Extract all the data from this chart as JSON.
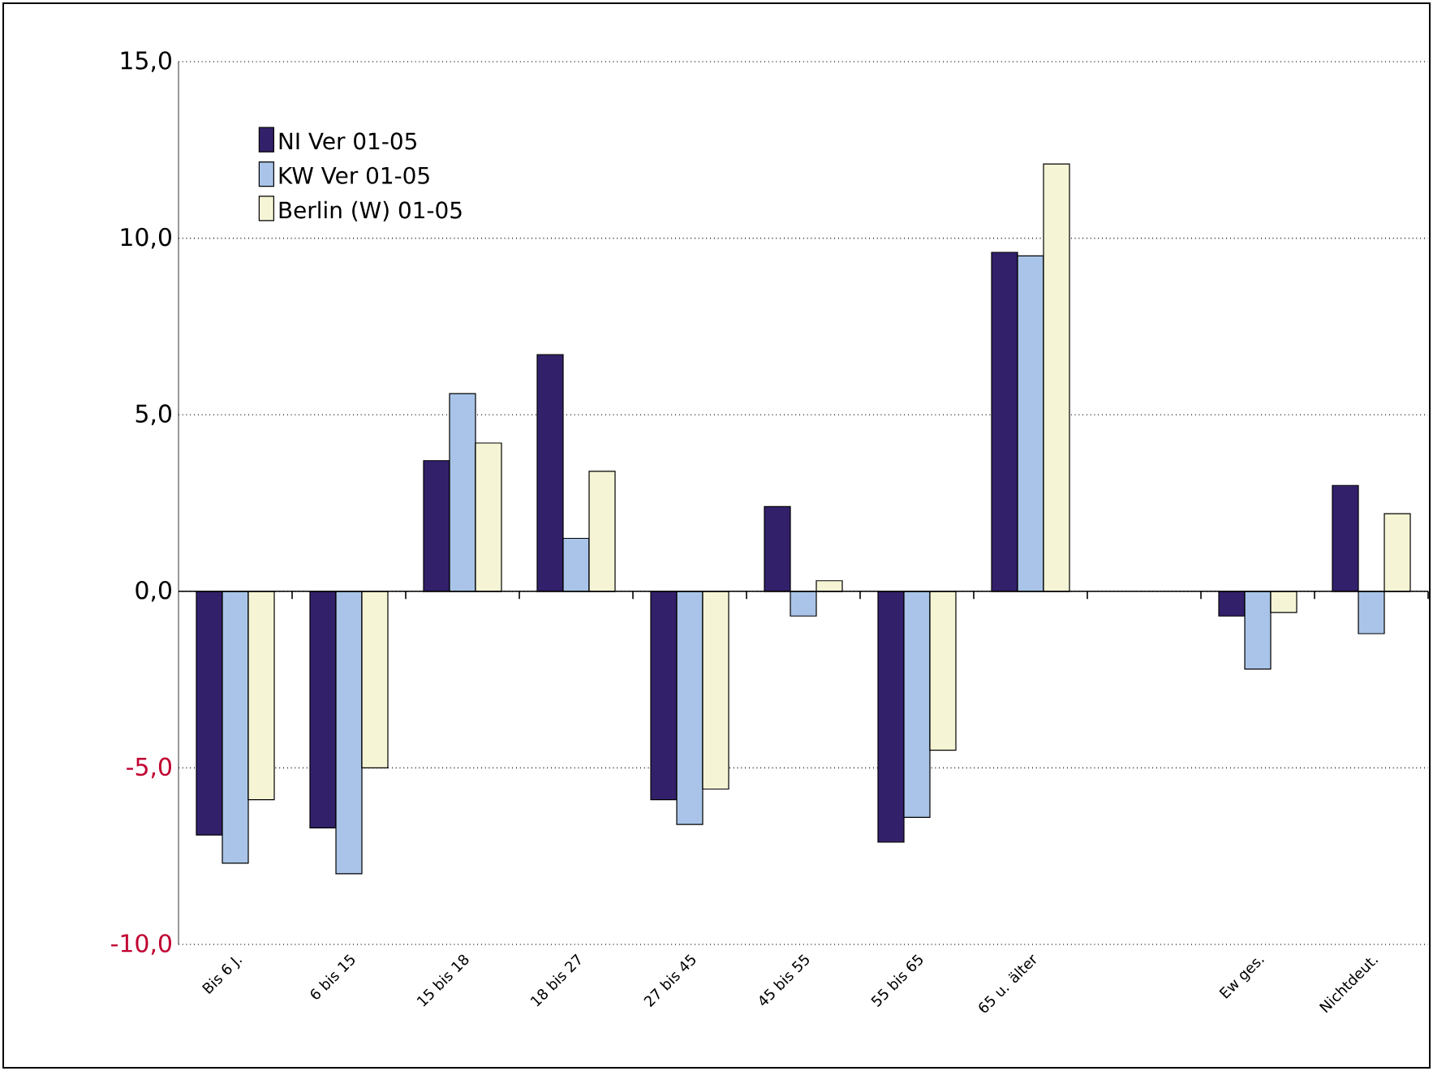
{
  "chart_data": {
    "type": "bar",
    "categories": [
      "Bis 6 J.",
      "6 bis 15",
      "15 bis 18",
      "18 bis 27",
      "27 bis 45",
      "45 bis 55",
      "55 bis 65",
      "65 u. älter",
      null,
      "Ew ges.",
      "Nichtdeut."
    ],
    "series": [
      {
        "name": "NI Ver 01-05",
        "color": "#33206b",
        "values": [
          -6.9,
          -6.7,
          3.7,
          6.7,
          -5.9,
          2.4,
          -7.1,
          9.6,
          null,
          -0.7,
          3.0
        ]
      },
      {
        "name": "KW Ver 01-05",
        "color": "#a9c4e8",
        "values": [
          -7.7,
          -8.0,
          5.6,
          1.5,
          -6.6,
          -0.7,
          -6.4,
          9.5,
          null,
          -2.2,
          -1.2
        ]
      },
      {
        "name": "Berlin (W) 01-05",
        "color": "#f5f5d5",
        "values": [
          -5.9,
          -5.0,
          4.2,
          3.4,
          -5.6,
          0.3,
          -4.5,
          12.1,
          null,
          -0.6,
          2.2
        ]
      }
    ],
    "ylim": [
      -10,
      15
    ],
    "yticks": [
      {
        "value": -10,
        "label": "-10,0"
      },
      {
        "value": -5,
        "label": "-5,0"
      },
      {
        "value": 0,
        "label": "0,0"
      },
      {
        "value": 5,
        "label": "5,0"
      },
      {
        "value": 10,
        "label": "10,0"
      },
      {
        "value": 15,
        "label": "15,0"
      }
    ],
    "grid": "y",
    "legend": "top left"
  }
}
